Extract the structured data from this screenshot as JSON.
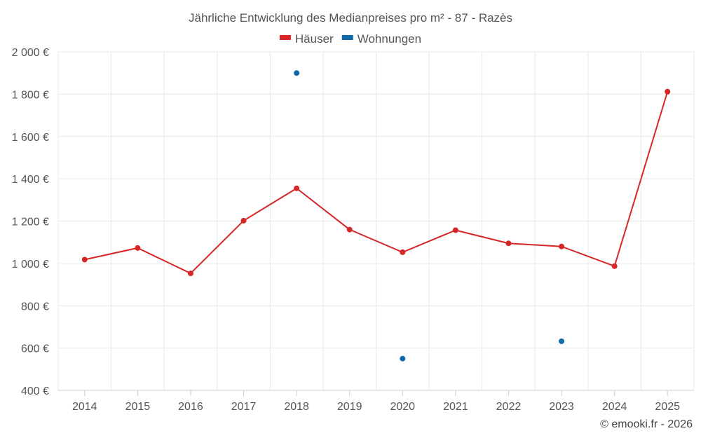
{
  "chart_data": {
    "type": "line",
    "title": "Jährliche Entwicklung des Medianpreises pro m² - 87 - Razès",
    "categories": [
      "2014",
      "2015",
      "2016",
      "2017",
      "2018",
      "2019",
      "2020",
      "2021",
      "2022",
      "2023",
      "2024",
      "2025"
    ],
    "series": [
      {
        "name": "Häuser",
        "color": "#d62728",
        "values": [
          1018,
          1073,
          953,
          1202,
          1355,
          1160,
          1053,
          1157,
          1095,
          1080,
          987,
          1812
        ]
      },
      {
        "name": "Wohnungen",
        "color": "#0e6aa8",
        "values": [
          null,
          null,
          null,
          null,
          1900,
          null,
          550,
          null,
          null,
          632,
          null,
          null
        ]
      }
    ],
    "ylim": [
      400,
      2000
    ],
    "yticks": [
      400,
      600,
      800,
      1000,
      1200,
      1400,
      1600,
      1800,
      2000
    ],
    "ytick_labels": [
      "400 €",
      "600 €",
      "800 €",
      "1 000 €",
      "1 200 €",
      "1 400 €",
      "1 600 €",
      "1 800 €",
      "2 000 €"
    ],
    "grid": true,
    "legend": "top-center",
    "xlabel": "",
    "ylabel": ""
  },
  "credit": "© emooki.fr - 2026"
}
